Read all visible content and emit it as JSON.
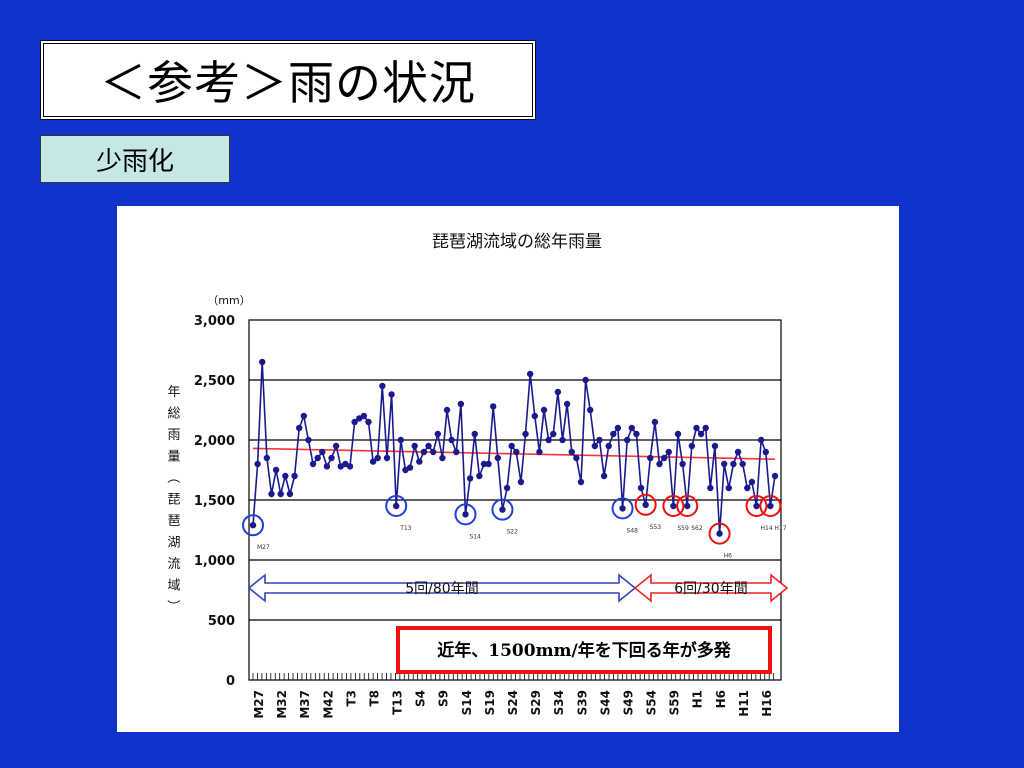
{
  "slide": {
    "title": "＜参考＞雨の状況",
    "subtitle": "少雨化"
  },
  "colors": {
    "background": "#1133cc",
    "series": "#1a1a8c",
    "trend": "#ff3333",
    "blue_circle": "#1f3fd6",
    "red_circle": "#ee1111",
    "callout_border": "#ee1111"
  },
  "chart_data": {
    "type": "line",
    "title": "琵琶湖流域の総年雨量",
    "unit_label": "（mm）",
    "ylabel": "年総雨量（琵琶湖流域）",
    "ylim": [
      0,
      3000
    ],
    "y_ticks": [
      "0",
      "500",
      "1,000",
      "1,500",
      "2,000",
      "2,500",
      "3,000"
    ],
    "x_tick_labels": [
      "M27",
      "M32",
      "M37",
      "M42",
      "T3",
      "T8",
      "T13",
      "S4",
      "S9",
      "S14",
      "S19",
      "S24",
      "S29",
      "S34",
      "S39",
      "S44",
      "S49",
      "S54",
      "S59",
      "H1",
      "H6",
      "H11",
      "H16"
    ],
    "series": [
      {
        "values": [
          1290,
          1800,
          2650,
          1850,
          1550,
          1750,
          1550,
          1700,
          1550,
          1700,
          2100,
          2200,
          2000,
          1800,
          1850,
          1900,
          1780,
          1850,
          1950,
          1780,
          1800,
          1780,
          2150,
          2180,
          2200,
          2150,
          1820,
          1850,
          2450,
          1850,
          2380,
          1450,
          2000,
          1750,
          1770,
          1950,
          1820,
          1900,
          1950,
          1900,
          2050,
          1850,
          2250,
          2000,
          1900,
          2300,
          1380,
          1680,
          2050,
          1700,
          1800,
          1800,
          2280,
          1850,
          1420,
          1600,
          1950,
          1900,
          1650,
          2050,
          2550,
          2200,
          1900,
          2250,
          2000,
          2050,
          2400,
          2000,
          2300,
          1900,
          1850,
          1650,
          2500,
          2250,
          1950,
          2000,
          1700,
          1950,
          2050,
          2100,
          1430,
          2000,
          2100,
          2050,
          1600,
          1460,
          1850,
          2150,
          1800,
          1850,
          1900,
          1450,
          2050,
          1800,
          1450,
          1950,
          2100,
          2050,
          2100,
          1600,
          1950,
          1220,
          1800,
          1600,
          1800,
          1900,
          1800,
          1600,
          1650,
          1450,
          2000,
          1900,
          1450,
          1700
        ]
      },
      {
        "values": [
          1930,
          1840
        ]
      }
    ],
    "annotations": {
      "circle_labels": [
        "M27",
        "T13",
        "S14",
        "S22",
        "S48",
        "S53",
        "S59",
        "S62",
        "H6",
        "H14",
        "H17"
      ],
      "arrow_left_label": "5回/80年間",
      "arrow_right_label": "6回/30年間",
      "callout": "近年、1500mm/年を下回る年が多発"
    },
    "grid": true
  }
}
